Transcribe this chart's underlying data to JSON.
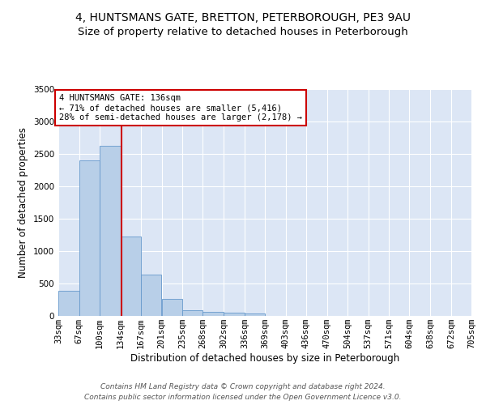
{
  "title": "4, HUNTSMANS GATE, BRETTON, PETERBOROUGH, PE3 9AU",
  "subtitle": "Size of property relative to detached houses in Peterborough",
  "xlabel": "Distribution of detached houses by size in Peterborough",
  "ylabel": "Number of detached properties",
  "footer_line1": "Contains HM Land Registry data © Crown copyright and database right 2024.",
  "footer_line2": "Contains public sector information licensed under the Open Government Licence v3.0.",
  "annotation_line1": "4 HUNTSMANS GATE: 136sqm",
  "annotation_line2": "← 71% of detached houses are smaller (5,416)",
  "annotation_line3": "28% of semi-detached houses are larger (2,178) →",
  "property_size": 136,
  "bin_edges": [
    33,
    67,
    100,
    134,
    167,
    201,
    235,
    268,
    302,
    336,
    369,
    403,
    436,
    470,
    504,
    537,
    571,
    604,
    638,
    672,
    705
  ],
  "bin_labels": [
    "33sqm",
    "67sqm",
    "100sqm",
    "134sqm",
    "167sqm",
    "201sqm",
    "235sqm",
    "268sqm",
    "302sqm",
    "336sqm",
    "369sqm",
    "403sqm",
    "436sqm",
    "470sqm",
    "504sqm",
    "537sqm",
    "571sqm",
    "604sqm",
    "638sqm",
    "672sqm",
    "705sqm"
  ],
  "counts": [
    390,
    2400,
    2620,
    1230,
    640,
    260,
    90,
    60,
    55,
    40,
    0,
    0,
    0,
    0,
    0,
    0,
    0,
    0,
    0,
    0
  ],
  "bar_color": "#b8cfe8",
  "bar_edge_color": "#6699cc",
  "vline_color": "#cc0000",
  "vline_x": 136,
  "annotation_box_color": "#cc0000",
  "background_color": "#dce6f5",
  "ylim": [
    0,
    3500
  ],
  "yticks": [
    0,
    500,
    1000,
    1500,
    2000,
    2500,
    3000,
    3500
  ],
  "title_fontsize": 10,
  "subtitle_fontsize": 9.5,
  "axis_label_fontsize": 8.5,
  "tick_fontsize": 7.5,
  "annotation_fontsize": 7.5,
  "footer_fontsize": 6.5
}
